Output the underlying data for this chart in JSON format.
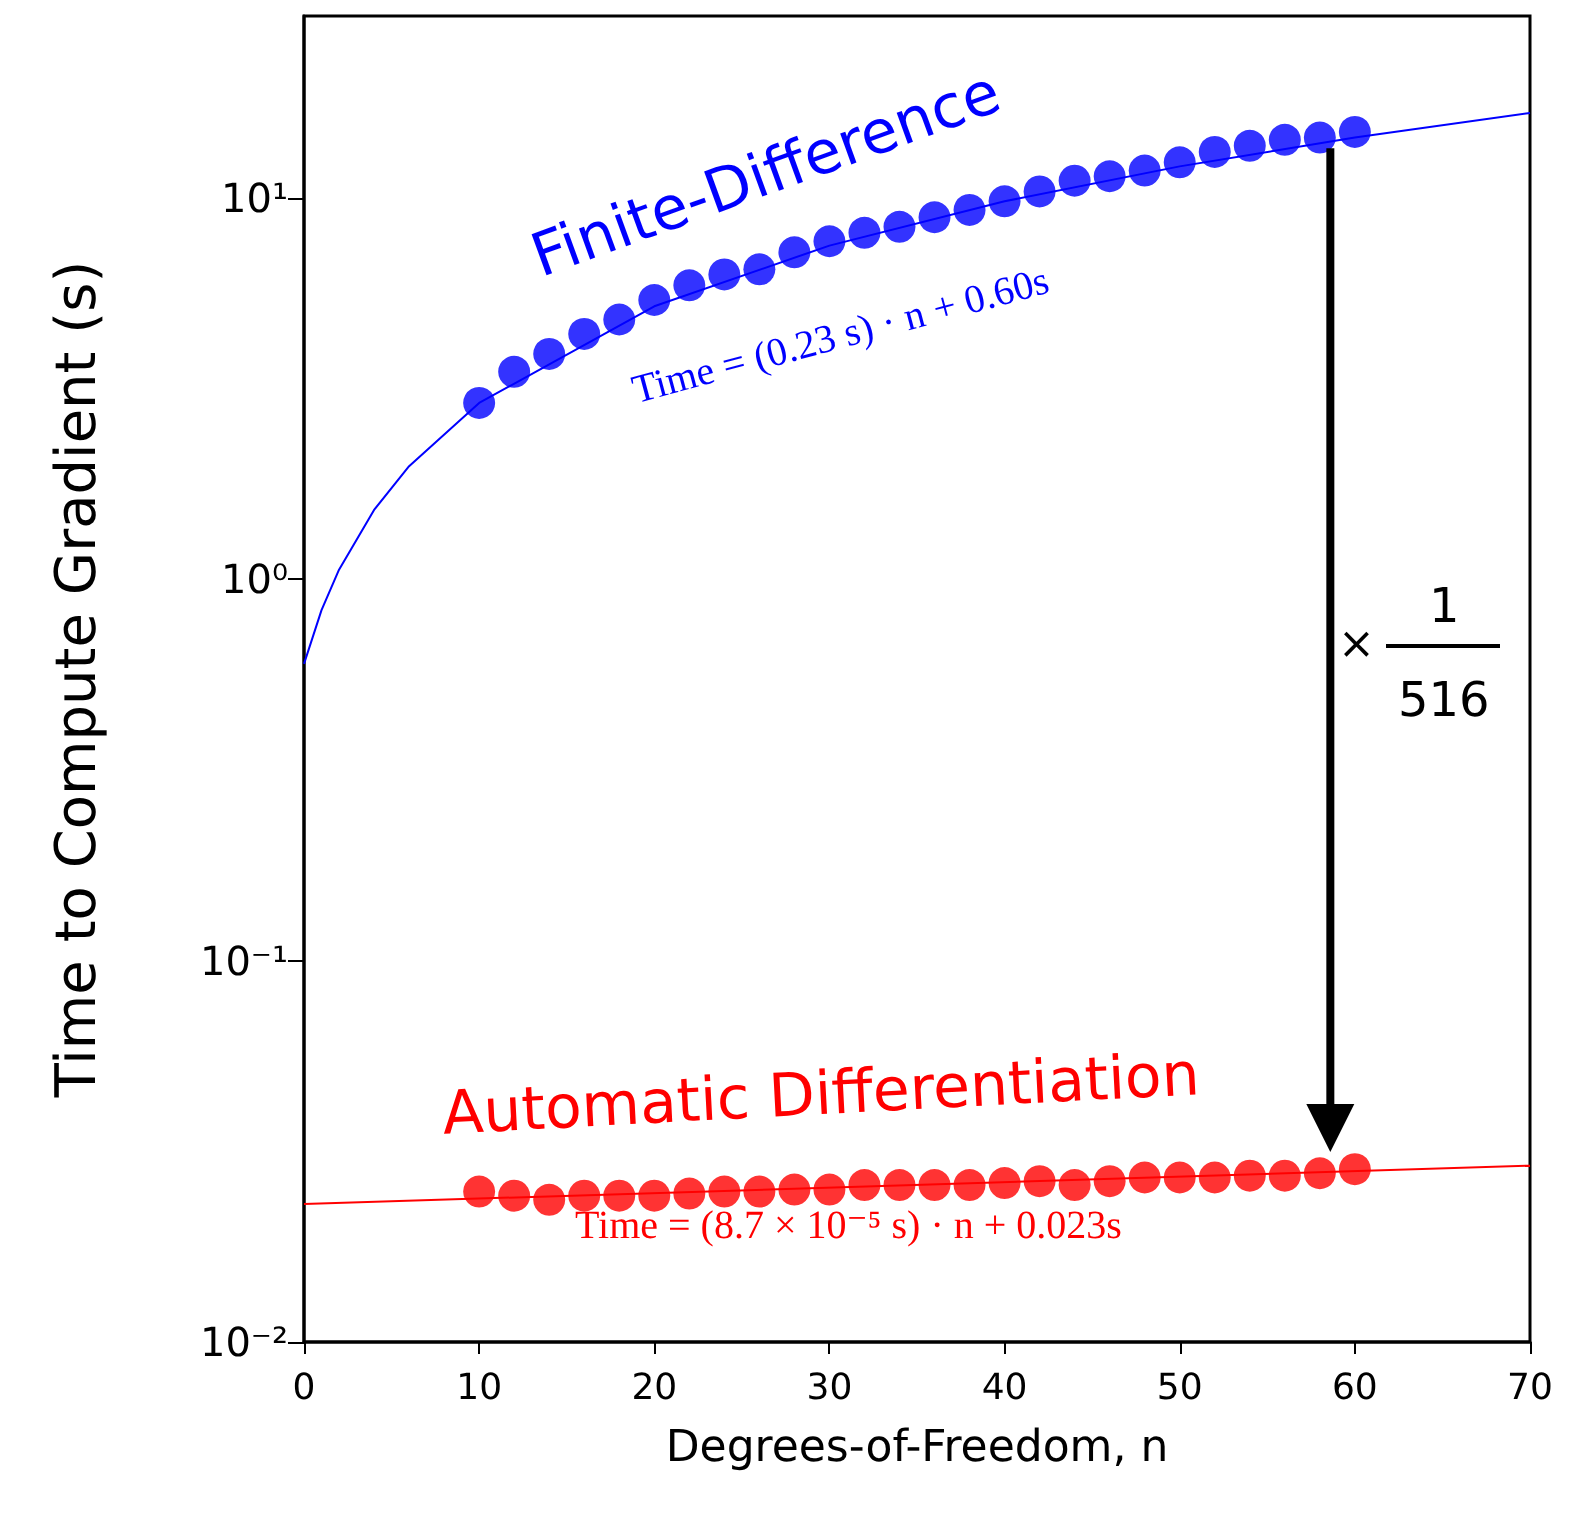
{
  "chart_data": {
    "type": "scatter",
    "xlabel": "Degrees-of-Freedom, n",
    "ylabel": "Time to Compute Gradient (s)",
    "xlim": [
      0,
      70
    ],
    "xticks": [
      0,
      10,
      20,
      30,
      40,
      50,
      60,
      70
    ],
    "ylim": [
      0.01,
      30
    ],
    "yticks": [
      {
        "value": 0.01,
        "label": "10⁻²"
      },
      {
        "value": 0.1,
        "label": "10⁻¹"
      },
      {
        "value": 1,
        "label": "10⁰"
      },
      {
        "value": 10,
        "label": "10¹"
      }
    ],
    "log": "y",
    "grid": false,
    "legend": false,
    "marker": "circle",
    "series": [
      {
        "name": "Finite-Difference",
        "color": "#0000ff",
        "x": [
          10,
          12,
          14,
          16,
          18,
          20,
          22,
          24,
          26,
          28,
          30,
          32,
          34,
          36,
          38,
          40,
          42,
          44,
          46,
          48,
          50,
          52,
          54,
          56,
          58,
          60
        ],
        "values": [
          2.9,
          3.5,
          3.9,
          4.4,
          4.8,
          5.4,
          5.9,
          6.3,
          6.5,
          7.2,
          7.7,
          8.1,
          8.4,
          8.9,
          9.3,
          9.8,
          10.4,
          11.1,
          11.4,
          11.8,
          12.4,
          13.2,
          13.7,
          14.2,
          14.4,
          14.9
        ]
      },
      {
        "name": "Automatic Differentiation",
        "color": "#ff0000",
        "x": [
          10,
          12,
          14,
          16,
          18,
          20,
          22,
          24,
          26,
          28,
          30,
          32,
          34,
          36,
          38,
          40,
          42,
          44,
          46,
          48,
          50,
          52,
          54,
          56,
          58,
          60
        ],
        "values": [
          0.0248,
          0.0242,
          0.0236,
          0.0242,
          0.0242,
          0.0242,
          0.0245,
          0.0248,
          0.0248,
          0.0251,
          0.0251,
          0.0258,
          0.0258,
          0.0258,
          0.0258,
          0.0261,
          0.0264,
          0.0258,
          0.0264,
          0.027,
          0.027,
          0.027,
          0.0273,
          0.0273,
          0.0277,
          0.0284
        ]
      },
      {
        "type": "line",
        "color": "#0000ff",
        "marker": "none",
        "x": [
          0,
          1,
          2,
          4,
          6,
          10,
          20,
          30,
          40,
          50,
          60,
          70
        ],
        "values": [
          0.6,
          0.83,
          1.06,
          1.52,
          1.98,
          2.9,
          5.2,
          7.5,
          9.8,
          12.1,
          14.4,
          16.7
        ]
      },
      {
        "type": "line",
        "color": "#ff0000",
        "marker": "none",
        "x": [
          0,
          70
        ],
        "values": [
          0.023,
          0.029
        ]
      }
    ],
    "annotations": [
      "Time = (0.23 s) · n + 0.60s",
      "Time = (8.7 × 10⁻⁵ s) · n + 0.023s",
      "×",
      "1",
      "516"
    ]
  }
}
